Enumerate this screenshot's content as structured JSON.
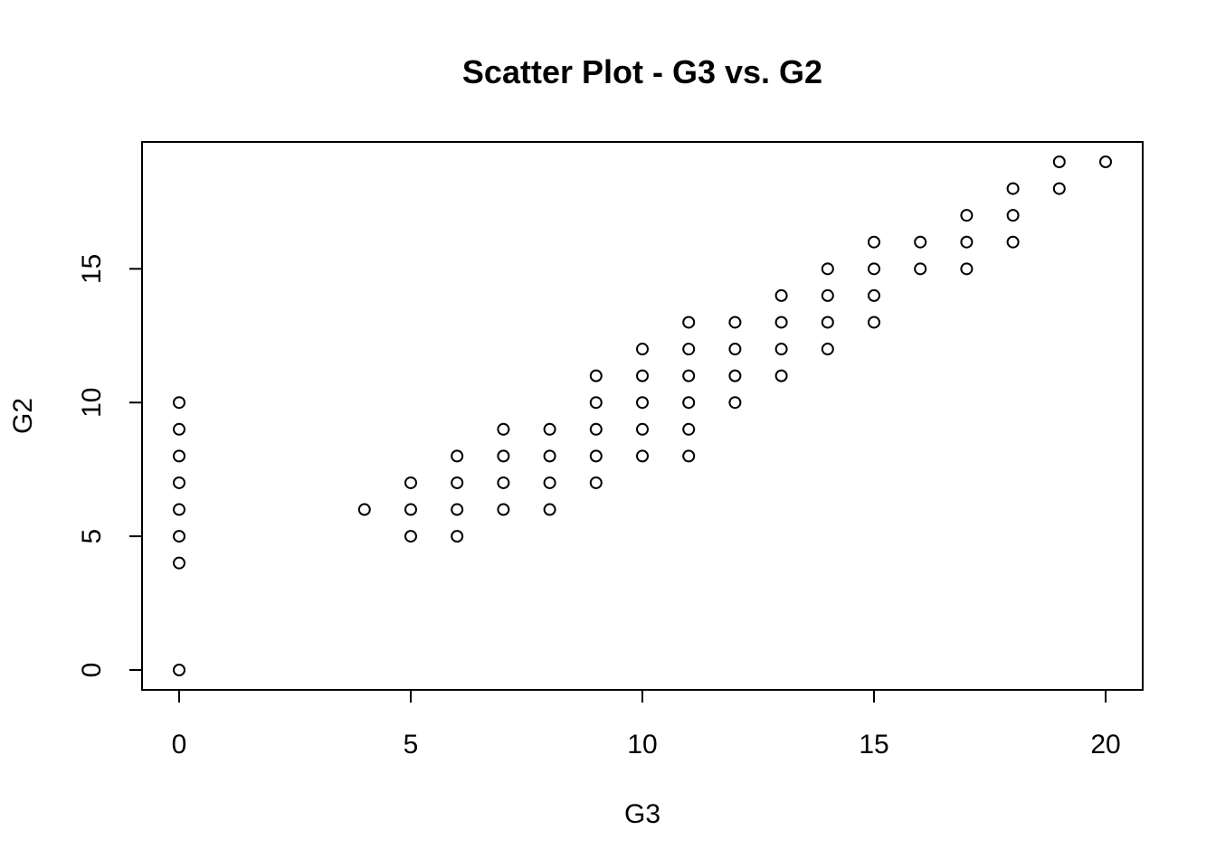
{
  "chart_data": {
    "type": "scatter",
    "title": "Scatter Plot - G3 vs. G2",
    "xlabel": "G3",
    "ylabel": "G2",
    "xlim": [
      0,
      20
    ],
    "ylim": [
      0,
      19
    ],
    "xticks": [
      0,
      5,
      10,
      15,
      20
    ],
    "yticks": [
      0,
      5,
      10,
      15
    ],
    "xtick_labels": [
      "0",
      "5",
      "10",
      "15",
      "20"
    ],
    "ytick_labels": [
      "0",
      "5",
      "10",
      "15"
    ],
    "grid": false,
    "marker": "open-circle",
    "points": [
      [
        0,
        0
      ],
      [
        0,
        4
      ],
      [
        0,
        5
      ],
      [
        0,
        6
      ],
      [
        0,
        7
      ],
      [
        0,
        8
      ],
      [
        0,
        9
      ],
      [
        0,
        10
      ],
      [
        4,
        6
      ],
      [
        5,
        5
      ],
      [
        5,
        6
      ],
      [
        5,
        7
      ],
      [
        6,
        5
      ],
      [
        6,
        6
      ],
      [
        6,
        7
      ],
      [
        6,
        8
      ],
      [
        7,
        6
      ],
      [
        7,
        7
      ],
      [
        7,
        8
      ],
      [
        7,
        9
      ],
      [
        8,
        6
      ],
      [
        8,
        7
      ],
      [
        8,
        8
      ],
      [
        8,
        9
      ],
      [
        9,
        7
      ],
      [
        9,
        8
      ],
      [
        9,
        9
      ],
      [
        9,
        10
      ],
      [
        9,
        11
      ],
      [
        10,
        8
      ],
      [
        10,
        9
      ],
      [
        10,
        10
      ],
      [
        10,
        11
      ],
      [
        10,
        12
      ],
      [
        11,
        8
      ],
      [
        11,
        9
      ],
      [
        11,
        10
      ],
      [
        11,
        11
      ],
      [
        11,
        12
      ],
      [
        11,
        13
      ],
      [
        12,
        10
      ],
      [
        12,
        11
      ],
      [
        12,
        12
      ],
      [
        12,
        13
      ],
      [
        13,
        11
      ],
      [
        13,
        12
      ],
      [
        13,
        13
      ],
      [
        13,
        14
      ],
      [
        14,
        12
      ],
      [
        14,
        13
      ],
      [
        14,
        14
      ],
      [
        14,
        15
      ],
      [
        15,
        13
      ],
      [
        15,
        14
      ],
      [
        15,
        15
      ],
      [
        15,
        16
      ],
      [
        16,
        15
      ],
      [
        16,
        16
      ],
      [
        17,
        15
      ],
      [
        17,
        16
      ],
      [
        17,
        17
      ],
      [
        18,
        16
      ],
      [
        18,
        17
      ],
      [
        18,
        18
      ],
      [
        19,
        18
      ],
      [
        19,
        19
      ],
      [
        20,
        19
      ]
    ],
    "colors": {
      "point_stroke": "#000000",
      "axis": "#000000",
      "background": "#ffffff"
    }
  }
}
